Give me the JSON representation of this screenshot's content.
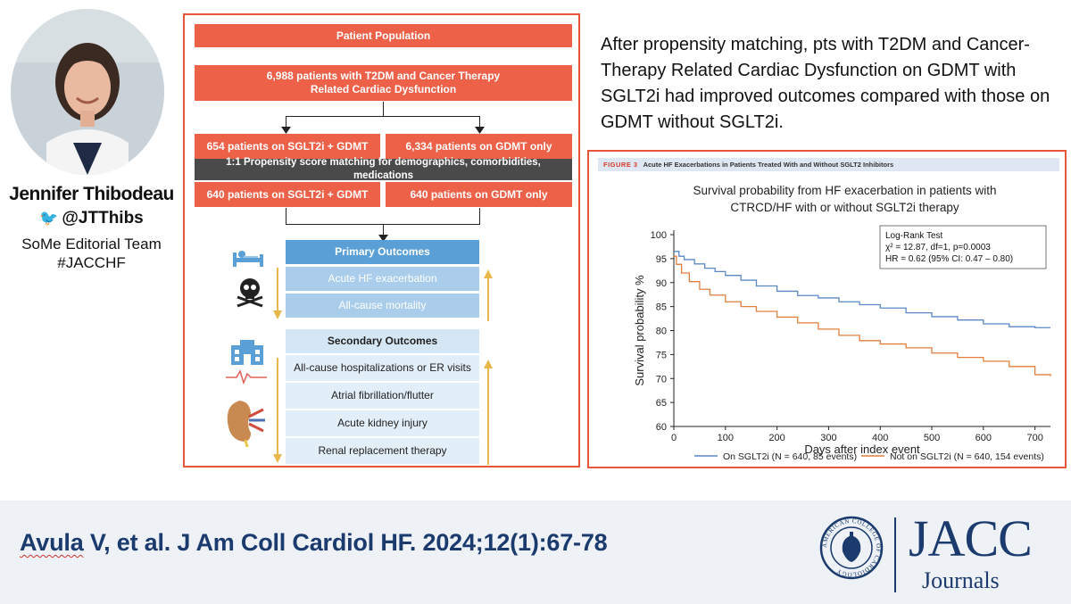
{
  "profile": {
    "name": "Jennifer Thibodeau",
    "handle": "@JTThibs",
    "team_line1": "SoMe Editorial Team",
    "team_line2": "#JACCHF"
  },
  "figure": {
    "population_header": "Patient Population",
    "population_line1": "6,988 patients with T2DM and Cancer Therapy",
    "population_line2": "Related Cardiac Dysfunction",
    "left_arm": "654 patients on SGLT2i + GDMT",
    "right_arm": "6,334 patients on GDMT only",
    "matching": "1:1 Propensity score matching for demographics, comorbidities, medications",
    "left_matched": "640 patients on SGLT2i + GDMT",
    "right_matched": "640 patients on GDMT only",
    "primary_header": "Primary Outcomes",
    "primary_items": [
      "Acute HF exacerbation",
      "All-cause mortality"
    ],
    "secondary_header": "Secondary Outcomes",
    "secondary_items": [
      "All-cause hospitalizations or ER visits",
      "Atrial fibrillation/flutter",
      "Acute kidney injury",
      "Renal replacement therapy"
    ]
  },
  "summary": "After propensity matching, pts with T2DM and Cancer-Therapy Related Cardiac Dysfunction on GDMT with SGLT2i had improved outcomes compared with those on GDMT without SGLT2i.",
  "chart_panel": {
    "figure_label": "FIGURE 3",
    "figure_caption": "Acute HF Exacerbations in Patients Treated With and Without SGLT2 Inhibitors"
  },
  "chart_data": {
    "type": "line",
    "title_line1": "Survival probability from HF exacerbation in patients with",
    "title_line2": "CTRCD/HF with or without SGLT2i therapy",
    "xlabel": "Days after index event",
    "ylabel": "Survival probability %",
    "xlim": [
      0,
      730
    ],
    "ylim": [
      60,
      100
    ],
    "x_ticks": [
      0,
      100,
      200,
      300,
      400,
      500,
      600,
      700
    ],
    "y_ticks": [
      60,
      65,
      70,
      75,
      80,
      85,
      90,
      95,
      100
    ],
    "stats_box": {
      "line1": "Log-Rank Test",
      "line2": "χ² = 12.87, df=1, p=0.0003",
      "line3": "HR = 0.62 (95% CI: 0.47 – 0.80)"
    },
    "series": [
      {
        "name": "On SGLT2i (N = 640, 85 events)",
        "color": "#5b87c5",
        "x": [
          0,
          10,
          20,
          40,
          60,
          80,
          100,
          130,
          160,
          200,
          240,
          280,
          320,
          360,
          400,
          450,
          500,
          550,
          600,
          650,
          700,
          730
        ],
        "y": [
          96.5,
          95.5,
          94.8,
          93.9,
          93.0,
          92.3,
          91.5,
          90.5,
          89.3,
          88.2,
          87.3,
          86.8,
          86.0,
          85.4,
          84.7,
          83.7,
          82.9,
          82.2,
          81.4,
          80.8,
          80.6,
          80.6
        ]
      },
      {
        "name": "Not on SGLT2i (N = 640, 154 events)",
        "color": "#e07f3e",
        "x": [
          0,
          5,
          15,
          30,
          50,
          70,
          100,
          130,
          160,
          200,
          240,
          280,
          320,
          360,
          400,
          450,
          500,
          550,
          600,
          650,
          700,
          730
        ],
        "y": [
          95.5,
          93.8,
          92.0,
          90.2,
          88.6,
          87.4,
          86.0,
          85.0,
          84.0,
          82.8,
          81.6,
          80.3,
          79.0,
          77.9,
          77.2,
          76.4,
          75.3,
          74.4,
          73.6,
          72.5,
          70.8,
          70.5
        ]
      }
    ]
  },
  "citation": {
    "author": "Avula",
    "rest": " V, et al. J Am Coll Cardiol HF. 2024;12(1):67-78"
  },
  "logo": {
    "seal_text": "AMERICAN COLLEGE OF CARDIOLOGY",
    "brand": "JACC",
    "sub": "Journals"
  }
}
